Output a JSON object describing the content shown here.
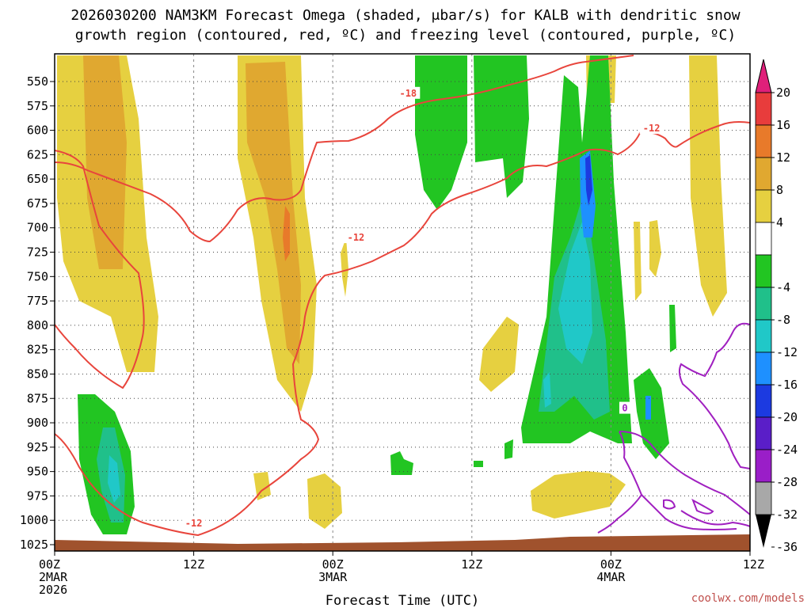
{
  "chart_data": {
    "type": "heatmap",
    "title_line1": "2026030200 NAM3KM Forecast Omega (shaded, μbar/s) for KALB with dendritic snow",
    "title_line2": "growth region (contoured, red, ºC) and freezing level (contoured, purple, ºC)",
    "xlabel": "Forecast Time (UTC)",
    "ylabel": "",
    "x_ticks": [
      {
        "hour": 0,
        "label": "00Z",
        "date": "2MAR",
        "year": "2026"
      },
      {
        "hour": 12,
        "label": "12Z",
        "date": "",
        "year": ""
      },
      {
        "hour": 24,
        "label": "00Z",
        "date": "3MAR",
        "year": ""
      },
      {
        "hour": 36,
        "label": "12Z",
        "date": "",
        "year": ""
      },
      {
        "hour": 48,
        "label": "00Z",
        "date": "4MAR",
        "year": ""
      },
      {
        "hour": 60,
        "label": "12Z",
        "date": "",
        "year": ""
      }
    ],
    "xlim_hours": [
      0,
      60
    ],
    "y_ticks_mb": [
      550,
      575,
      600,
      625,
      650,
      675,
      700,
      725,
      750,
      775,
      800,
      825,
      850,
      875,
      900,
      925,
      950,
      975,
      1000,
      1025
    ],
    "ylim_mb": [
      525,
      1035
    ],
    "grid": "dotted",
    "colorbar": {
      "labels": [
        "20",
        "16",
        "12",
        "8",
        "4",
        "-4",
        "-8",
        "-12",
        "-16",
        "-20",
        "-24",
        "-28",
        "-32",
        "-36"
      ],
      "bands": [
        {
          "from": 16,
          "to": 20,
          "color": "#e83c3c"
        },
        {
          "from": 12,
          "to": 16,
          "color": "#e87a2a"
        },
        {
          "from": 8,
          "to": 12,
          "color": "#e0a830"
        },
        {
          "from": 4,
          "to": 8,
          "color": "#e6d040"
        },
        {
          "from": -4,
          "to": 4,
          "color": "#ffffff"
        },
        {
          "from": -8,
          "to": -4,
          "color": "#22c522"
        },
        {
          "from": -12,
          "to": -8,
          "color": "#20c08a"
        },
        {
          "from": -16,
          "to": -12,
          "color": "#20c8c8"
        },
        {
          "from": -20,
          "to": -16,
          "color": "#1e90ff"
        },
        {
          "from": -24,
          "to": -20,
          "color": "#1c3ae0"
        },
        {
          "from": -28,
          "to": -24,
          "color": "#5a1ec8"
        },
        {
          "from": -32,
          "to": -28,
          "color": "#9a1ec8"
        },
        {
          "from": -36,
          "to": -32,
          "color": "#a8a8a8"
        }
      ],
      "top_arrow_color": "#e0207a",
      "bottom_arrow_color": "#000000"
    },
    "contour_labels": [
      {
        "text": "-18",
        "hour": 30.5,
        "mb": 562,
        "color": "#e8453c"
      },
      {
        "text": "-12",
        "hour": 51.5,
        "mb": 598,
        "color": "#e8453c"
      },
      {
        "text": "-12",
        "hour": 26.0,
        "mb": 710,
        "color": "#e8453c"
      },
      {
        "text": "-12",
        "hour": 12.0,
        "mb": 1003,
        "color": "#e8453c"
      },
      {
        "text": "0",
        "hour": 49.2,
        "mb": 885,
        "color": "#a020c0"
      }
    ],
    "terrain_color": "#a0522d"
  },
  "credit": "coolwx.com/models"
}
